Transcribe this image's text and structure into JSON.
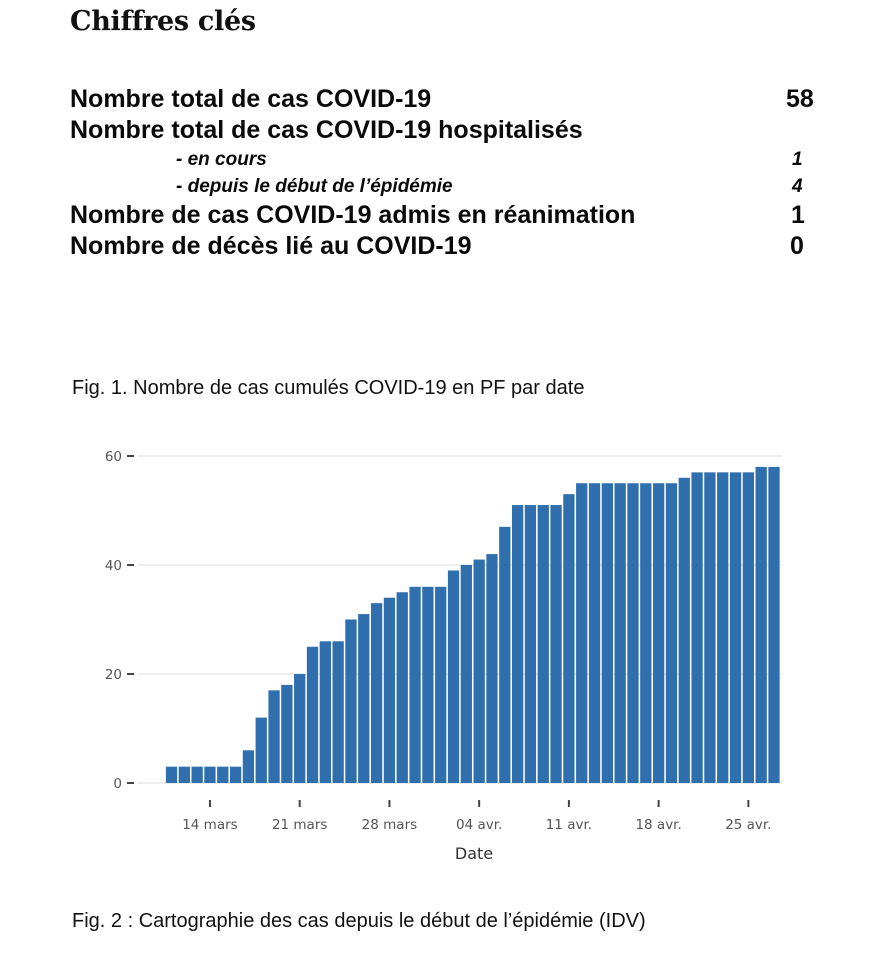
{
  "heading": "Chiffres clés",
  "key_figures": {
    "total_cases": {
      "label": "Nombre total de cas COVID-19",
      "value": "58"
    },
    "hospitalised_header": {
      "label": "Nombre total de cas COVID-19 hospitalisés"
    },
    "hospitalised_current": {
      "label": "- en cours",
      "value": "1"
    },
    "hospitalised_since_start": {
      "label": "- depuis le début de l’épidémie",
      "value": "4"
    },
    "icu": {
      "label": "Nombre de cas COVID-19 admis en réanimation",
      "value": "1"
    },
    "deaths": {
      "label": "Nombre de décès lié au COVID-19",
      "value": "0"
    }
  },
  "fig1_caption": "Fig. 1. Nombre de cas cumulés COVID-19 en PF par date",
  "fig2_caption": "Fig. 2 : Cartographie des cas depuis le début de l’épidémie (IDV)",
  "chart_data": {
    "type": "bar",
    "x": [
      "11 mars",
      "12 mars",
      "13 mars",
      "14 mars",
      "15 mars",
      "16 mars",
      "17 mars",
      "18 mars",
      "19 mars",
      "20 mars",
      "21 mars",
      "22 mars",
      "23 mars",
      "24 mars",
      "25 mars",
      "26 mars",
      "27 mars",
      "28 mars",
      "29 mars",
      "30 mars",
      "31 mars",
      "01 avr.",
      "02 avr.",
      "03 avr.",
      "04 avr.",
      "05 avr.",
      "06 avr.",
      "07 avr.",
      "08 avr.",
      "09 avr.",
      "10 avr.",
      "11 avr.",
      "12 avr.",
      "13 avr.",
      "14 avr.",
      "15 avr.",
      "16 avr.",
      "17 avr.",
      "18 avr.",
      "19 avr.",
      "20 avr.",
      "21 avr.",
      "22 avr.",
      "23 avr.",
      "24 avr.",
      "25 avr.",
      "26 avr.",
      "27 avr."
    ],
    "values": [
      3,
      3,
      3,
      3,
      3,
      3,
      6,
      12,
      17,
      18,
      20,
      25,
      26,
      26,
      30,
      31,
      33,
      34,
      35,
      36,
      36,
      36,
      39,
      40,
      41,
      42,
      47,
      51,
      51,
      51,
      51,
      53,
      55,
      55,
      55,
      55,
      55,
      55,
      55,
      55,
      56,
      57,
      57,
      57,
      57,
      57,
      58,
      58
    ],
    "xlabel": "Date",
    "ylabel": "",
    "ylim": [
      0,
      60
    ],
    "yticks": [
      "0",
      "20",
      "40",
      "60"
    ],
    "xticks": [
      "14 mars",
      "21 mars",
      "28 mars",
      "04 avr.",
      "11 avr.",
      "18 avr.",
      "25 avr."
    ],
    "bar_color": "#2f6fae",
    "grid": true
  }
}
